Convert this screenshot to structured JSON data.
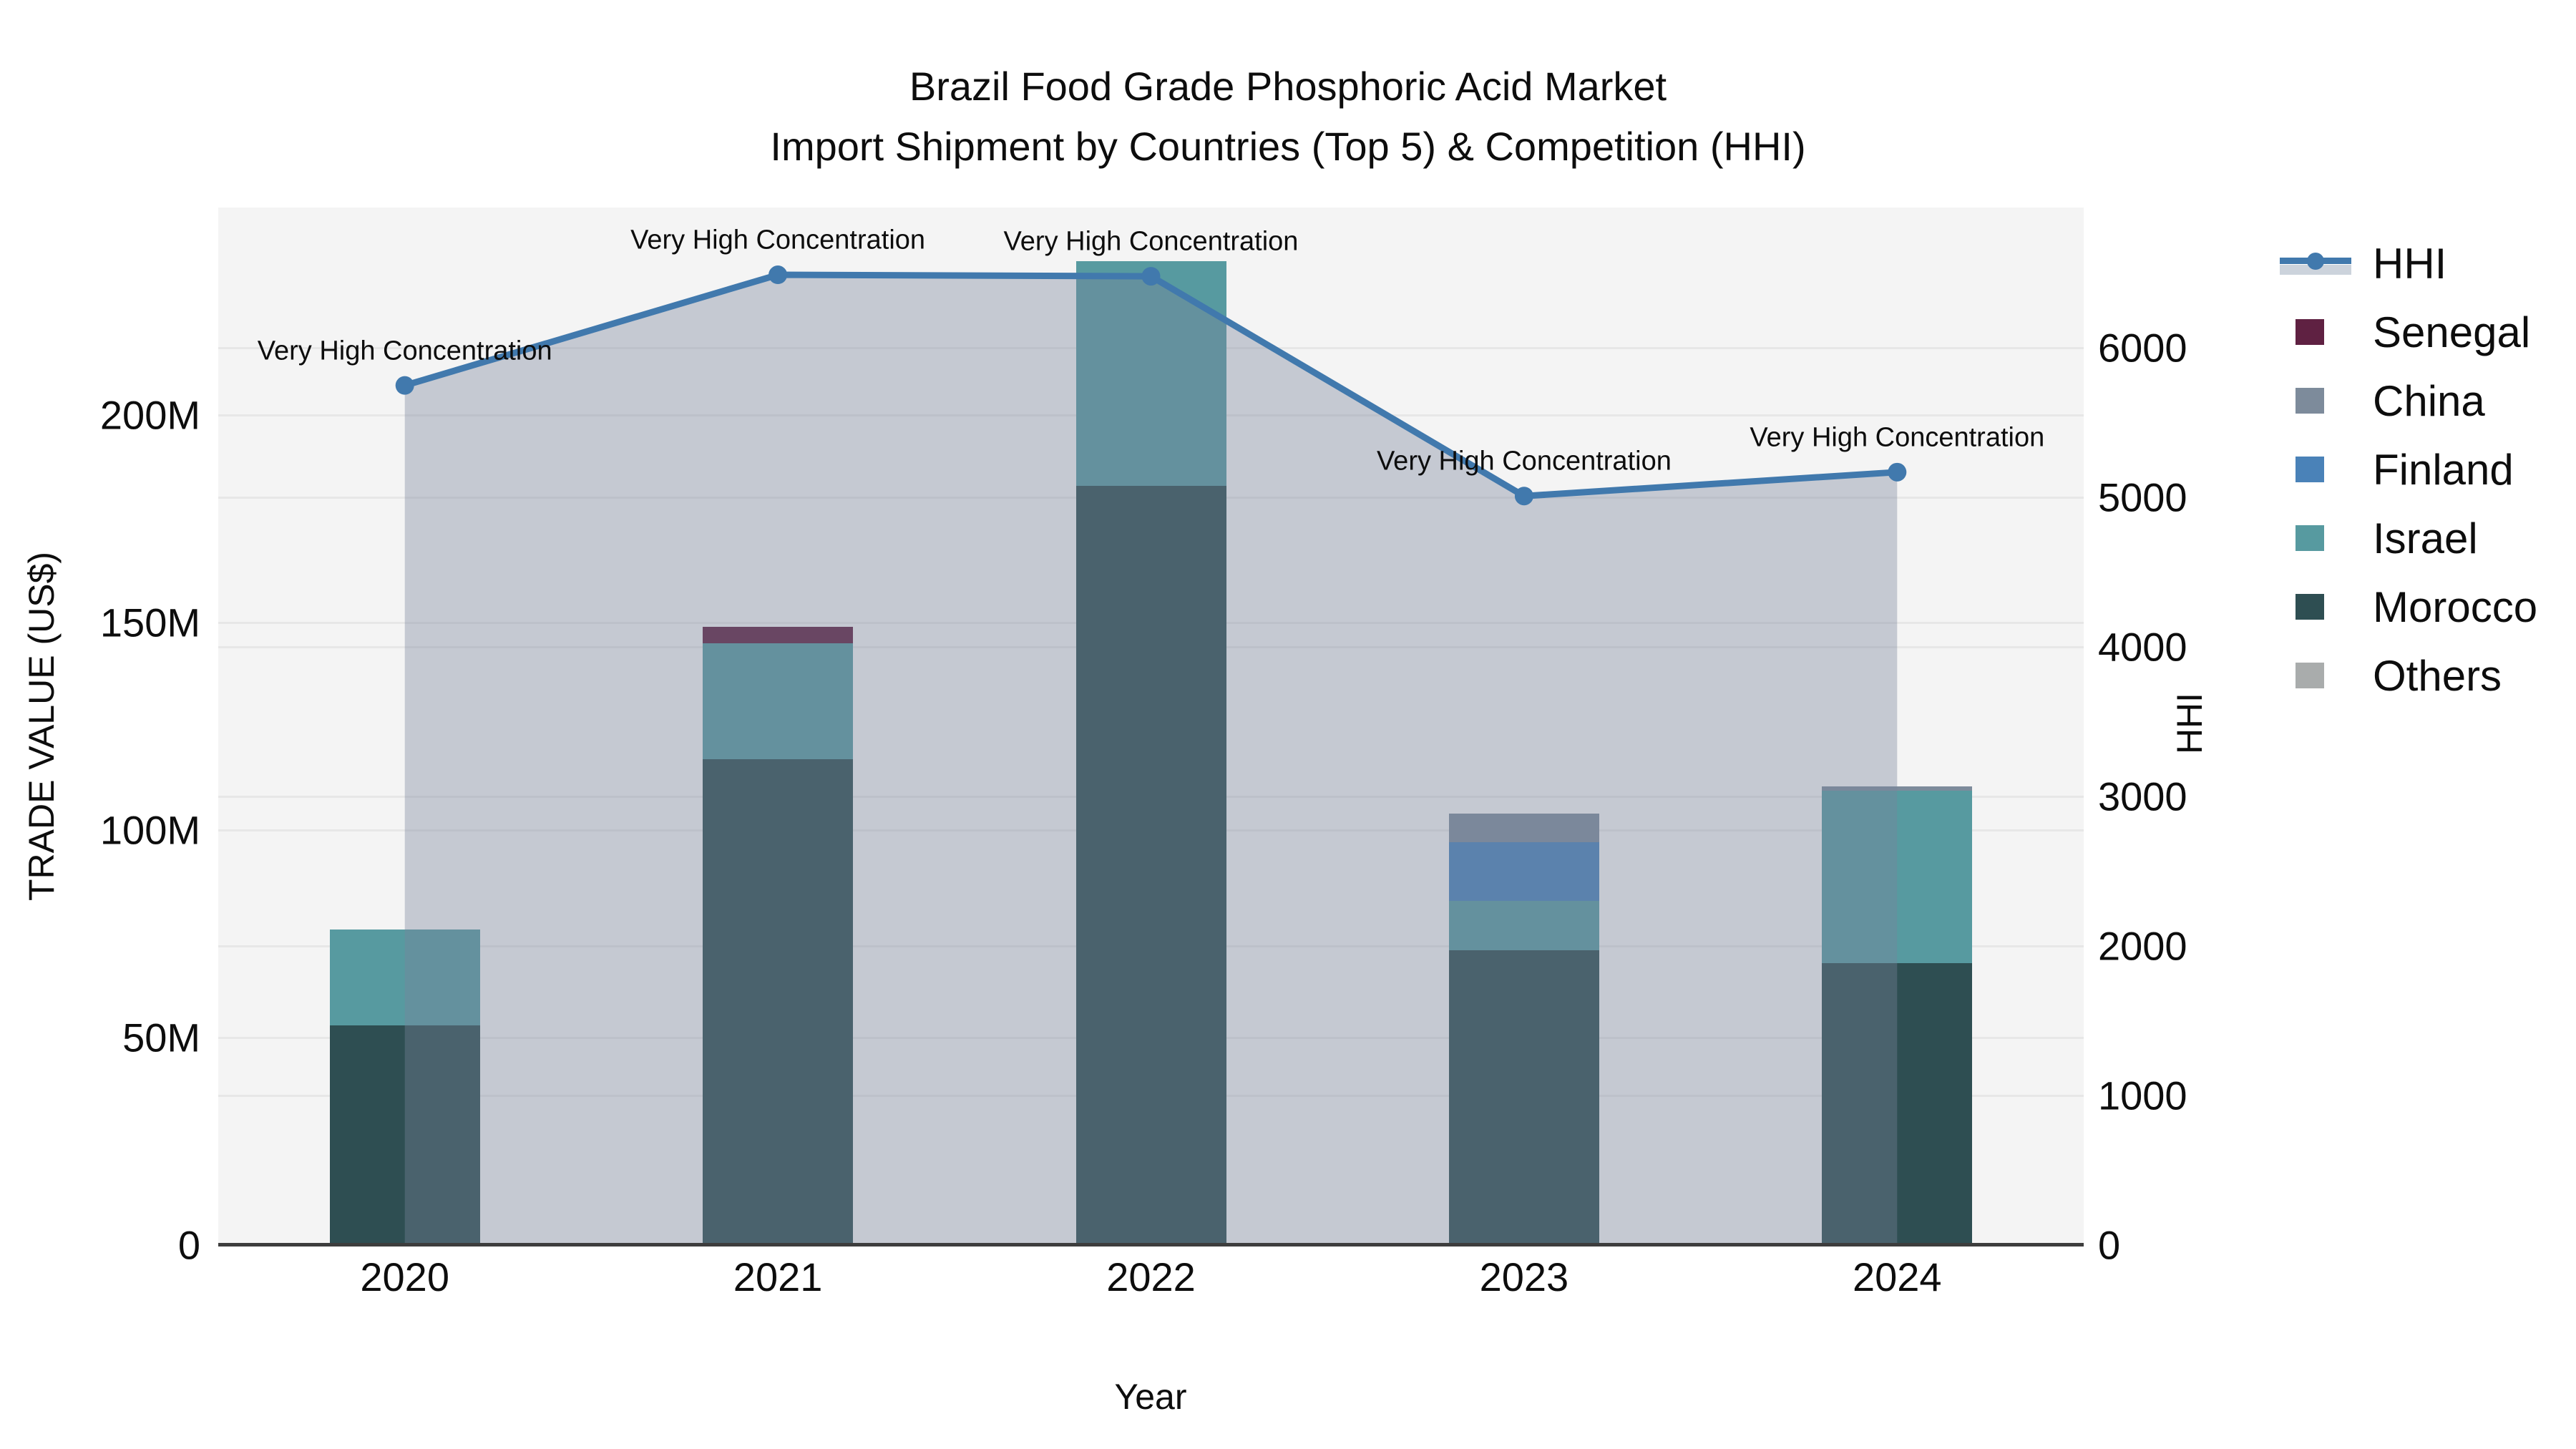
{
  "title_line1": "Brazil Food Grade Phosphoric Acid Market",
  "title_line2": "Import Shipment by Countries (Top 5) & Competition (HHI)",
  "axes": {
    "xlabel": "Year",
    "ylabel": "TRADE VALUE (US$)",
    "y2label": "HHI",
    "ytick_labels": [
      "0",
      "50M",
      "100M",
      "150M",
      "200M"
    ],
    "ytick_values_musd": [
      0,
      50,
      100,
      150,
      200
    ],
    "ylim_musd": [
      0,
      250
    ],
    "y2tick_labels": [
      "0",
      "1000",
      "2000",
      "3000",
      "4000",
      "5000",
      "6000"
    ],
    "y2tick_values": [
      0,
      1000,
      2000,
      3000,
      4000,
      5000,
      6000
    ],
    "y2lim": [
      0,
      6940
    ],
    "grid": "on"
  },
  "chart_data": {
    "type": "bar",
    "subtype": "stacked bars + line on secondary axis (area filled)",
    "categories": [
      "2020",
      "2021",
      "2022",
      "2023",
      "2024"
    ],
    "stack_order_bottom_to_top": [
      "Morocco",
      "Israel",
      "Finland",
      "China",
      "Senegal",
      "Others"
    ],
    "series": [
      {
        "name": "Morocco",
        "color": "#2e4e52",
        "values_musd": [
          53,
          117,
          183,
          71,
          68
        ]
      },
      {
        "name": "Israel",
        "color": "#579aa0",
        "values_musd": [
          23,
          28,
          54,
          12,
          41.5
        ]
      },
      {
        "name": "Finland",
        "color": "#4a82b8",
        "values_musd": [
          0,
          0,
          0,
          14,
          0
        ]
      },
      {
        "name": "China",
        "color": "#7d8b9b",
        "values_musd": [
          0,
          0,
          0,
          7,
          1
        ]
      },
      {
        "name": "Senegal",
        "color": "#5f2142",
        "values_musd": [
          0,
          4,
          0,
          0,
          0
        ]
      },
      {
        "name": "Others",
        "color": "#a9acac",
        "values_musd": [
          0,
          0,
          0,
          0,
          0
        ]
      }
    ],
    "bar_totals_musd": [
      76,
      149,
      237,
      104,
      110.5
    ],
    "line_series": {
      "name": "HHI",
      "color": "#4179ad",
      "area_fill": "rgba(120,132,155,0.38)",
      "values": [
        5750,
        6490,
        6480,
        5010,
        5170
      ]
    },
    "annotations": [
      "Very High Concentration",
      "Very High Concentration",
      "Very High Concentration",
      "Very High Concentration",
      "Very High Concentration"
    ],
    "title": "Brazil Food Grade Phosphoric Acid Market — Import Shipment by Countries (Top 5) & Competition (HHI)",
    "legend_position": "right"
  },
  "legend": {
    "items": [
      {
        "label": "HHI",
        "type": "line",
        "color": "#4179ad"
      },
      {
        "label": "Senegal",
        "type": "swatch",
        "color": "#5f2142"
      },
      {
        "label": "China",
        "type": "swatch",
        "color": "#7d8b9b"
      },
      {
        "label": "Finland",
        "type": "swatch",
        "color": "#4a82b8"
      },
      {
        "label": "Israel",
        "type": "swatch",
        "color": "#579aa0"
      },
      {
        "label": "Morocco",
        "type": "swatch",
        "color": "#2e4e52"
      },
      {
        "label": "Others",
        "type": "swatch",
        "color": "#a9acac"
      }
    ]
  },
  "colors": {
    "plot_background": "#f4f4f4",
    "figure_background": "#ffffff",
    "gridline": "#e7e7e7",
    "x_axis_spine": "#3d3d3d",
    "text": "#0d0d0d"
  }
}
